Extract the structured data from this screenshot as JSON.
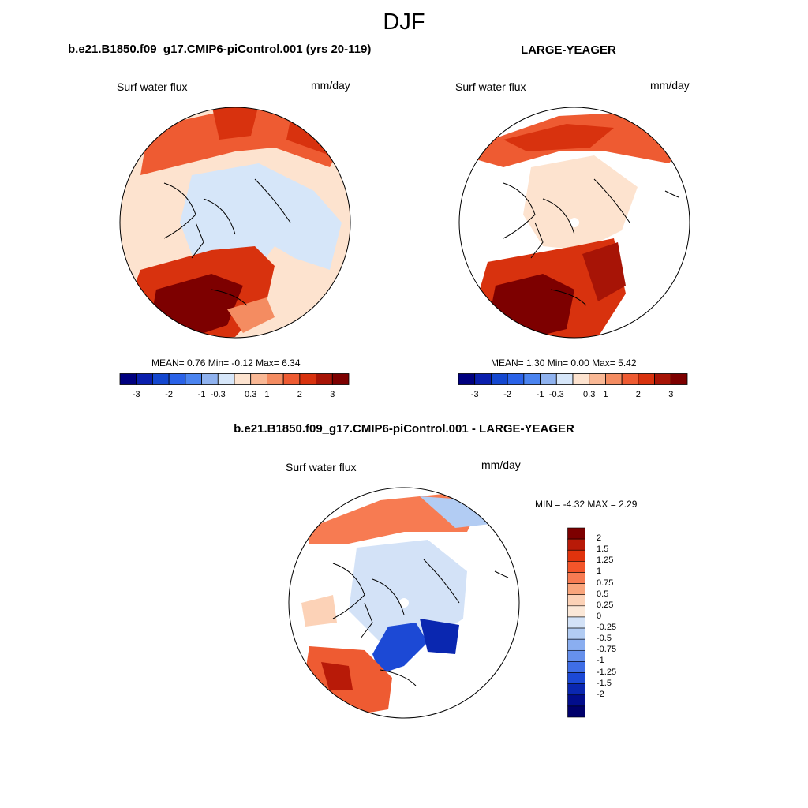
{
  "figure": {
    "title": "DJF",
    "panels": [
      {
        "title": "b.e21.B1850.f09_g17.CMIP6-piControl.001 (yrs 20-119)",
        "left_label": "Surf water flux",
        "right_label": "mm/day",
        "stats": {
          "mean_label": "MEAN=",
          "mean": "0.76",
          "min_label": "Min=",
          "min": "-0.12",
          "max_label": "Max=",
          "max": "6.34"
        }
      },
      {
        "title": "LARGE-YEAGER",
        "left_label": "Surf water flux",
        "right_label": "mm/day",
        "stats": {
          "mean_label": "MEAN=",
          "mean": "1.30",
          "min_label": "Min=",
          "min": "0.00",
          "max_label": "Max=",
          "max": "5.42"
        }
      },
      {
        "title": "b.e21.B1850.f09_g17.CMIP6-piControl.001 - LARGE-YEAGER",
        "left_label": "Surf water flux",
        "right_label": "mm/day",
        "stats": {
          "min_label": "MIN =",
          "min": "-4.32",
          "max_label": "MAX =",
          "max": "2.29"
        }
      }
    ]
  },
  "chart_data": [
    {
      "type": "heatmap",
      "projection": "north-polar-stereographic",
      "title": "b.e21.B1850.f09_g17.CMIP6-piControl.001 (yrs 20-119)",
      "variable": "Surf water flux",
      "units": "mm/day",
      "mean": 0.76,
      "min": -0.12,
      "max": 6.34,
      "colorbar": {
        "orientation": "horizontal",
        "colors": [
          "#00007f",
          "#0a1fad",
          "#1447cf",
          "#2a62e8",
          "#4b84f0",
          "#8fb2ef",
          "#d6e6f9",
          "#fde3cf",
          "#f9b895",
          "#f48c61",
          "#ee5b32",
          "#d8320e",
          "#a71406",
          "#7d0000"
        ],
        "tick_labels": [
          "-3",
          "-2",
          "-1",
          "-0.3",
          "0.3",
          "1",
          "2",
          "3"
        ]
      }
    },
    {
      "type": "heatmap",
      "projection": "north-polar-stereographic",
      "title": "LARGE-YEAGER",
      "variable": "Surf water flux",
      "units": "mm/day",
      "mean": 1.3,
      "min": 0.0,
      "max": 5.42,
      "colorbar": {
        "orientation": "horizontal",
        "colors": [
          "#00007f",
          "#0a1fad",
          "#1447cf",
          "#2a62e8",
          "#4b84f0",
          "#8fb2ef",
          "#d6e6f9",
          "#fde3cf",
          "#f9b895",
          "#f48c61",
          "#ee5b32",
          "#d8320e",
          "#a71406",
          "#7d0000"
        ],
        "tick_labels": [
          "-3",
          "-2",
          "-1",
          "-0.3",
          "0.3",
          "1",
          "2",
          "3"
        ]
      }
    },
    {
      "type": "heatmap",
      "projection": "north-polar-stereographic",
      "title": "b.e21.B1850.f09_g17.CMIP6-piControl.001 - LARGE-YEAGER",
      "variable": "Surf water flux",
      "units": "mm/day",
      "min": -4.32,
      "max": 2.29,
      "colorbar": {
        "orientation": "vertical",
        "colors": [
          "#7d0000",
          "#b81a08",
          "#e0330d",
          "#f3552a",
          "#f77b52",
          "#f9a57c",
          "#fcd2b7",
          "#fbe8d8",
          "#d3e2f7",
          "#b2ccf3",
          "#8aaef0",
          "#6690ec",
          "#3f6ee6",
          "#1c49d5",
          "#0a27b0",
          "#020d8c",
          "#00006b"
        ],
        "tick_labels": [
          "2",
          "1.5",
          "1.25",
          "1",
          "0.75",
          "0.5",
          "0.25",
          "0",
          "-0.25",
          "-0.5",
          "-0.75",
          "-1",
          "-1.25",
          "-1.5",
          "-2"
        ]
      }
    }
  ]
}
